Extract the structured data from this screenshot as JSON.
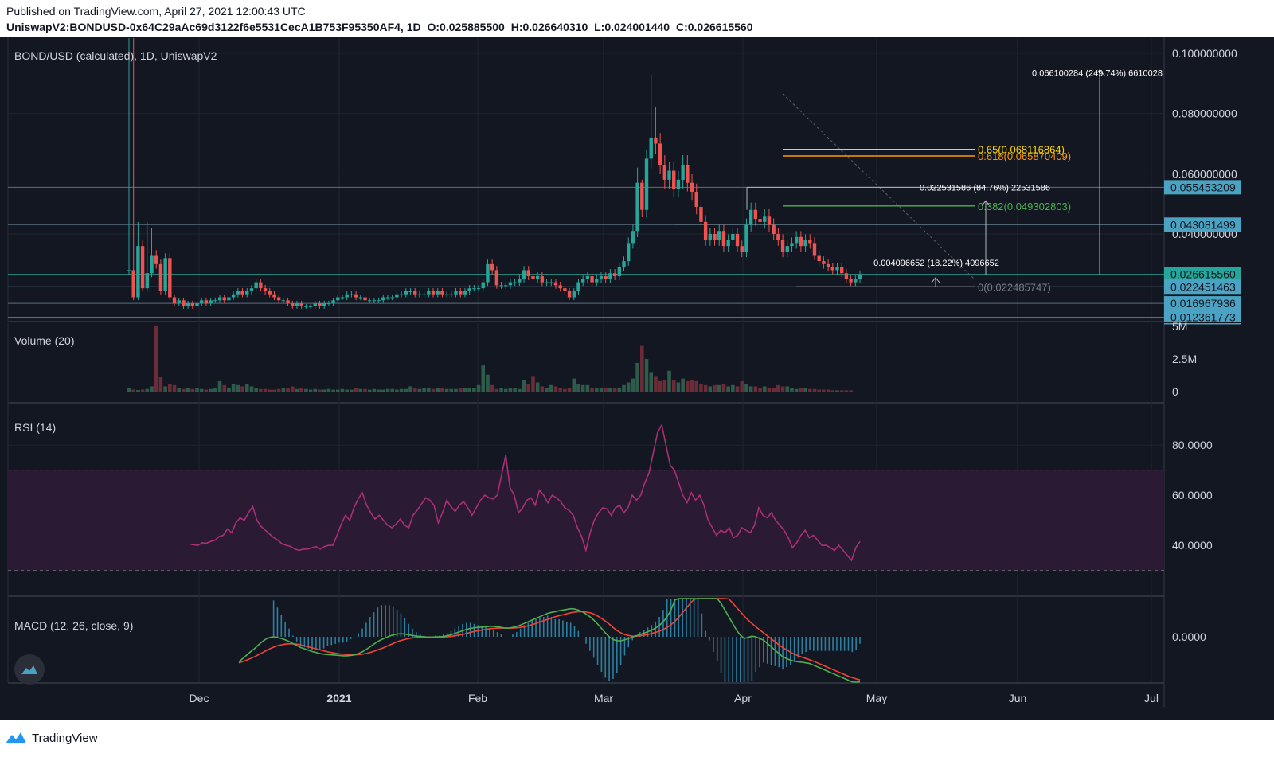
{
  "header": {
    "published": "Published on TradingView.com, April 27, 2021 12:00:43 UTC",
    "symbol": "UniswapV2:BONDUSD-0x64C29aAc69d3122f6e5531CecA1B753F95350AF4, 1D",
    "open": "O:0.025885500",
    "high": "H:0.026640310",
    "low": "L:0.024001440",
    "close": "C:0.026615560"
  },
  "panes": {
    "price_title": "BOND/USD (calculated), 1D, UniswapV2",
    "volume_title": "Volume (20)",
    "rsi_title": "RSI (14)",
    "macd_title": "MACD (12, 26, close, 9)"
  },
  "footer": {
    "brand": "TradingView",
    "brand_icon": "tradingview-logo-icon"
  },
  "colors": {
    "background": "#131722",
    "up": "#26a69a",
    "down": "#ef5350",
    "vol_up": "#2d5c4a",
    "vol_down": "#6b2b37",
    "rsi": "#ab2f76",
    "rsi_band": "#2a1a33",
    "macd": "#4caf50",
    "signal": "#f44336",
    "hist": "#2e7ea0",
    "fib_065": "#ffd600",
    "fib_0618": "#ff9800",
    "fib_0382": "#4caf50",
    "fib_0": "#787b86",
    "price_label": "#4ba3c3",
    "current_label": "#26a69a"
  },
  "chart_data": [
    {
      "type": "candlestick",
      "title": "BOND/USD (calculated), 1D, UniswapV2",
      "x_ticks": [
        "Dec",
        "2021",
        "Feb",
        "Mar",
        "Apr",
        "May",
        "Jun",
        "Jul"
      ],
      "y_ticks": [
        "0.100000000",
        "0.080000000",
        "0.060000000",
        "0.040000000"
      ],
      "ylim": [
        0.012,
        0.105
      ],
      "price_labels": [
        {
          "value": "0.055453209",
          "price": 0.0555,
          "style": "level"
        },
        {
          "value": "0.043081499",
          "price": 0.0431,
          "style": "level"
        },
        {
          "value": "0.026615560",
          "price": 0.0266,
          "style": "current"
        },
        {
          "value": "0.022451463",
          "price": 0.0225,
          "style": "level"
        },
        {
          "value": "0.016967936",
          "price": 0.017,
          "style": "level"
        },
        {
          "value": "0.012361773",
          "price": 0.0124,
          "style": "level"
        }
      ],
      "fib_levels": [
        {
          "label": "0.65(0.068116864)",
          "price": 0.0681,
          "color": "#ffd600"
        },
        {
          "label": "0.618(0.065870409)",
          "price": 0.0659,
          "color": "#ff9800"
        },
        {
          "label": "0.382(0.049302803)",
          "price": 0.0493,
          "color": "#4caf50"
        },
        {
          "label": "0(0.022485747)",
          "price": 0.0225,
          "color": "#787b86"
        }
      ],
      "measurements": [
        {
          "text": "0.066100284 (249.74%) 6610028",
          "price": 0.0935,
          "x": 0.9
        },
        {
          "text": "0.022531586 (84.76%) 22531586",
          "price": 0.0555,
          "x": 0.72
        },
        {
          "text": "0.004096652 (18.22%) 4096652",
          "price": 0.0305,
          "x": 0.66
        }
      ],
      "closes": [
        0.028,
        0.019,
        0.036,
        0.022,
        0.027,
        0.033,
        0.03,
        0.021,
        0.032,
        0.019,
        0.017,
        0.018,
        0.016,
        0.017,
        0.016,
        0.017,
        0.018,
        0.017,
        0.018,
        0.018,
        0.019,
        0.018,
        0.019,
        0.02,
        0.021,
        0.02,
        0.021,
        0.022,
        0.024,
        0.022,
        0.021,
        0.02,
        0.019,
        0.018,
        0.018,
        0.017,
        0.016,
        0.017,
        0.016,
        0.016,
        0.016,
        0.017,
        0.016,
        0.017,
        0.017,
        0.018,
        0.019,
        0.019,
        0.02,
        0.02,
        0.019,
        0.019,
        0.018,
        0.018,
        0.018,
        0.018,
        0.019,
        0.019,
        0.019,
        0.02,
        0.02,
        0.021,
        0.021,
        0.02,
        0.02,
        0.02,
        0.021,
        0.02,
        0.021,
        0.02,
        0.02,
        0.02,
        0.021,
        0.02,
        0.021,
        0.022,
        0.022,
        0.022,
        0.024,
        0.03,
        0.028,
        0.023,
        0.023,
        0.023,
        0.024,
        0.024,
        0.025,
        0.028,
        0.026,
        0.025,
        0.026,
        0.024,
        0.024,
        0.024,
        0.023,
        0.022,
        0.021,
        0.019,
        0.021,
        0.024,
        0.025,
        0.026,
        0.024,
        0.025,
        0.026,
        0.025,
        0.027,
        0.026,
        0.029,
        0.031,
        0.037,
        0.041,
        0.057,
        0.048,
        0.065,
        0.072,
        0.07,
        0.063,
        0.058,
        0.061,
        0.055,
        0.058,
        0.063,
        0.057,
        0.054,
        0.049,
        0.044,
        0.038,
        0.04,
        0.038,
        0.041,
        0.036,
        0.038,
        0.04,
        0.036,
        0.034,
        0.043,
        0.048,
        0.045,
        0.044,
        0.046,
        0.043,
        0.04,
        0.038,
        0.034,
        0.036,
        0.037,
        0.039,
        0.036,
        0.038,
        0.037,
        0.033,
        0.031,
        0.03,
        0.029,
        0.028,
        0.029,
        0.027,
        0.025,
        0.024,
        0.025,
        0.0266
      ]
    },
    {
      "type": "bar",
      "title": "Volume (20)",
      "y_ticks": [
        "5M",
        "2.5M",
        "0"
      ],
      "ylim": [
        0,
        5000000
      ],
      "values": [
        300000,
        150000,
        120000,
        150000,
        200000,
        400000,
        5000000,
        1100000,
        400000,
        600000,
        500000,
        300000,
        200000,
        300000,
        200000,
        250000,
        200000,
        150000,
        200000,
        300000,
        800000,
        500000,
        300000,
        600000,
        500000,
        400000,
        600000,
        400000,
        300000,
        200000,
        200000,
        150000,
        150000,
        200000,
        250000,
        300000,
        400000,
        200000,
        250000,
        200000,
        150000,
        200000,
        150000,
        150000,
        200000,
        150000,
        150000,
        200000,
        150000,
        150000,
        250000,
        200000,
        200000,
        150000,
        200000,
        150000,
        150000,
        200000,
        200000,
        150000,
        200000,
        200000,
        400000,
        300000,
        200000,
        300000,
        250000,
        200000,
        250000,
        300000,
        200000,
        200000,
        200000,
        300000,
        250000,
        300000,
        300000,
        500000,
        2000000,
        1300000,
        500000,
        200000,
        300000,
        200000,
        300000,
        250000,
        200000,
        900000,
        600000,
        1200000,
        700000,
        400000,
        300000,
        500000,
        400000,
        300000,
        200000,
        300000,
        1000000,
        600000,
        500000,
        500000,
        300000,
        300000,
        300000,
        250000,
        300000,
        250000,
        300000,
        500000,
        700000,
        1000000,
        2200000,
        3500000,
        2500000,
        1500000,
        1200000,
        800000,
        900000,
        1600000,
        900000,
        700000,
        1000000,
        800000,
        900000,
        800000,
        600000,
        500000,
        400000,
        500000,
        500000,
        600000,
        400000,
        500000,
        400000,
        800000,
        600000,
        400000,
        400000,
        300000,
        400000,
        300000,
        300000,
        500000,
        400000,
        400000,
        300000,
        200000,
        300000,
        250000,
        200000,
        200000,
        150000,
        150000,
        150000,
        100000,
        100000,
        100000,
        100000,
        100000
      ]
    },
    {
      "type": "line",
      "title": "RSI (14)",
      "y_ticks": [
        "80.0000",
        "60.0000",
        "40.0000"
      ],
      "ylim": [
        20,
        95
      ],
      "band": [
        30,
        70
      ],
      "values": [
        40.5,
        40.2,
        40.0,
        41.0,
        40.8,
        41.5,
        42.0,
        43.5,
        44.0,
        46.5,
        45.0,
        49.0,
        51.0,
        50.0,
        53.0,
        55.5,
        50.0,
        47.5,
        46.0,
        44.5,
        43.0,
        42.0,
        40.5,
        40.0,
        39.5,
        38.5,
        38.0,
        38.5,
        38.5,
        39.0,
        39.5,
        38.5,
        39.5,
        40.0,
        40.0,
        44.0,
        48.5,
        52.0,
        50.0,
        55.0,
        58.5,
        61.0,
        56.0,
        53.0,
        50.5,
        52.0,
        50.0,
        48.0,
        47.0,
        48.5,
        50.5,
        48.0,
        47.0,
        52.0,
        54.0,
        56.5,
        59.0,
        58.0,
        56.0,
        49.0,
        53.0,
        58.0,
        55.5,
        53.5,
        56.0,
        57.5,
        55.0,
        52.0,
        55.0,
        58.0,
        60.0,
        59.0,
        58.5,
        60.0,
        68.0,
        76.0,
        63.0,
        60.0,
        53.0,
        55.0,
        58.0,
        59.0,
        56.0,
        62.0,
        60.0,
        57.0,
        60.0,
        59.0,
        57.5,
        55.0,
        54.0,
        52.0,
        47.0,
        43.5,
        38.0,
        45.0,
        50.0,
        53.0,
        55.0,
        54.5,
        52.0,
        55.0,
        56.0,
        53.0,
        55.0,
        60.0,
        58.0,
        60.0,
        65.0,
        69.0,
        77.0,
        85.0,
        88.0,
        80.0,
        72.0,
        70.0,
        65.0,
        60.0,
        57.0,
        61.0,
        58.0,
        60.0,
        56.0,
        50.0,
        47.0,
        44.0,
        46.0,
        45.0,
        47.0,
        43.0,
        44.0,
        47.0,
        46.0,
        45.0,
        48.0,
        55.0,
        52.0,
        51.0,
        53.0,
        50.0,
        48.0,
        46.0,
        43.0,
        39.0,
        41.0,
        44.0,
        46.0,
        43.0,
        44.0,
        42.0,
        40.0,
        40.0,
        39.0,
        38.0,
        40.0,
        38.0,
        36.0,
        34.0,
        39.0,
        41.5
      ]
    },
    {
      "type": "line",
      "title": "MACD (12, 26, close, 9)",
      "y_ticks": [
        "0.0000"
      ],
      "series": [
        {
          "name": "MACD",
          "values": [
            -7.5,
            -6.5,
            -5.5,
            -4.5,
            -3.6,
            -2.5,
            -1.5,
            -0.7,
            -0.2,
            0.0,
            -0.2,
            -0.5,
            -0.9,
            -1.4,
            -2.0,
            -2.6,
            -3.2,
            -3.6,
            -4.0,
            -4.4,
            -4.7,
            -5.0,
            -5.2,
            -5.3,
            -5.4,
            -5.5,
            -5.6,
            -5.7,
            -5.7,
            -5.6,
            -5.4,
            -5.0,
            -4.5,
            -3.8,
            -3.0,
            -2.2,
            -1.4,
            -0.8,
            -0.3,
            0.2,
            0.6,
            0.8,
            0.9,
            0.8,
            0.6,
            0.4,
            0.2,
            0.1,
            0.0,
            -0.1,
            -0.1,
            0.0,
            0.0,
            0.1,
            0.3,
            0.6,
            1.0,
            1.4,
            1.8,
            2.2,
            2.5,
            2.7,
            2.8,
            2.9,
            3.0,
            3.1,
            3.1,
            3.0,
            2.8,
            2.6,
            2.6,
            2.8,
            3.1,
            3.5,
            4.0,
            4.5,
            5.0,
            5.5,
            6.0,
            6.5,
            7.0,
            7.3,
            7.5,
            7.8,
            8.0,
            8.2,
            8.4,
            8.3,
            8.0,
            7.5,
            6.8,
            6.0,
            5.0,
            3.8,
            2.5,
            1.2,
            0.0,
            -0.8,
            -1.2,
            -1.2,
            -0.9,
            -0.5,
            -0.1,
            0.3,
            0.7,
            1.1,
            1.5,
            2.0,
            2.6,
            3.4,
            4.5,
            6.0,
            8.0,
            11.0,
            14.0,
            16.0,
            17.0,
            17.5,
            17.0,
            16.0,
            15.0,
            14.0,
            13.5,
            12.5,
            11.5,
            10.0,
            8.0,
            6.0,
            4.0,
            2.0,
            0.5,
            -0.5,
            -0.2,
            0.2,
            0.0,
            -0.5,
            -1.0,
            -2.0,
            -3.0,
            -4.0,
            -5.0,
            -6.0,
            -6.5,
            -7.0,
            -7.3,
            -7.5,
            -7.6,
            -7.8,
            -8.0,
            -8.5,
            -9.0,
            -9.5,
            -10.0,
            -10.5,
            -11.0,
            -11.5,
            -12.0,
            -12.5,
            -13.0,
            -13.5,
            -13.7,
            -13.5
          ]
        },
        {
          "name": "Signal",
          "values": [
            -7.8,
            -7.4,
            -7.0,
            -6.5,
            -6.0,
            -5.4,
            -4.8,
            -4.2,
            -3.6,
            -3.1,
            -2.7,
            -2.4,
            -2.2,
            -2.1,
            -2.1,
            -2.2,
            -2.4,
            -2.7,
            -3.0,
            -3.3,
            -3.6,
            -3.9,
            -4.2,
            -4.5,
            -4.7,
            -4.9,
            -5.1,
            -5.2,
            -5.3,
            -5.4,
            -5.4,
            -5.3,
            -5.2,
            -5.0,
            -4.7,
            -4.3,
            -3.9,
            -3.5,
            -3.0,
            -2.5,
            -2.0,
            -1.5,
            -1.1,
            -0.8,
            -0.5,
            -0.3,
            -0.2,
            -0.1,
            -0.1,
            -0.1,
            -0.1,
            -0.1,
            -0.1,
            -0.1,
            0.0,
            0.1,
            0.3,
            0.5,
            0.7,
            1.0,
            1.3,
            1.6,
            1.8,
            2.0,
            2.2,
            2.4,
            2.5,
            2.6,
            2.6,
            2.6,
            2.6,
            2.6,
            2.7,
            2.8,
            3.0,
            3.3,
            3.6,
            4.0,
            4.4,
            4.8,
            5.2,
            5.6,
            6.0,
            6.3,
            6.6,
            6.9,
            7.2,
            7.4,
            7.5,
            7.5,
            7.4,
            7.2,
            6.8,
            6.2,
            5.5,
            4.7,
            3.8,
            2.8,
            1.9,
            1.2,
            0.7,
            0.4,
            0.2,
            0.2,
            0.3,
            0.5,
            0.7,
            1.0,
            1.3,
            1.7,
            2.2,
            2.8,
            3.6,
            4.6,
            5.8,
            7.2,
            8.6,
            10.0,
            11.2,
            12.2,
            13.0,
            13.5,
            13.8,
            13.8,
            13.6,
            13.1,
            12.3,
            11.3,
            10.1,
            8.8,
            7.5,
            6.2,
            5.0,
            4.0,
            3.0,
            2.1,
            1.2,
            0.3,
            -0.6,
            -1.5,
            -2.4,
            -3.2,
            -3.9,
            -4.6,
            -5.2,
            -5.7,
            -6.1,
            -6.5,
            -6.9,
            -7.3,
            -7.8,
            -8.3,
            -8.8,
            -9.3,
            -9.8,
            -10.3,
            -10.8,
            -11.3,
            -11.8,
            -12.2,
            -12.6,
            -12.9
          ]
        }
      ]
    }
  ]
}
